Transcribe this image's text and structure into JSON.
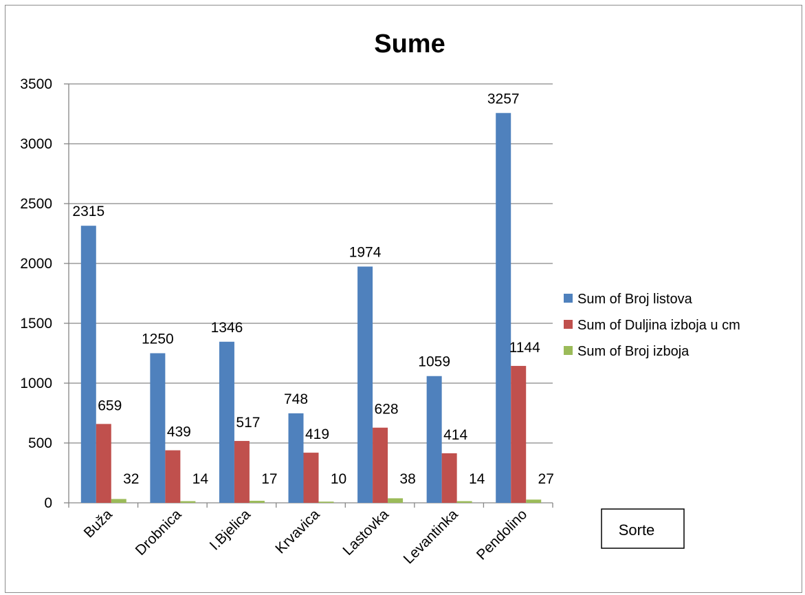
{
  "chart_data": {
    "type": "bar",
    "title": "Sume",
    "xlabel": "Sorte",
    "ylabel": "",
    "ylim": [
      0,
      3500
    ],
    "yticks": [
      0,
      500,
      1000,
      1500,
      2000,
      2500,
      3000,
      3500
    ],
    "grid": true,
    "legend_position": "right",
    "categories": [
      "Buža",
      "Drobnica",
      "I.Bjelica",
      "Krvavica",
      "Lastovka",
      "Levantinka",
      "Pendolino"
    ],
    "series": [
      {
        "name": "Sum of Broj listova",
        "color": "#4f81bd",
        "values": [
          2315,
          1250,
          1346,
          748,
          1974,
          1059,
          3257
        ]
      },
      {
        "name": "Sum of Duljina izboja u cm",
        "color": "#c0504d",
        "values": [
          659,
          439,
          517,
          419,
          628,
          414,
          1144
        ]
      },
      {
        "name": "Sum of Broj izboja",
        "color": "#9bbb59",
        "values": [
          32,
          14,
          17,
          10,
          38,
          14,
          27
        ]
      }
    ]
  }
}
